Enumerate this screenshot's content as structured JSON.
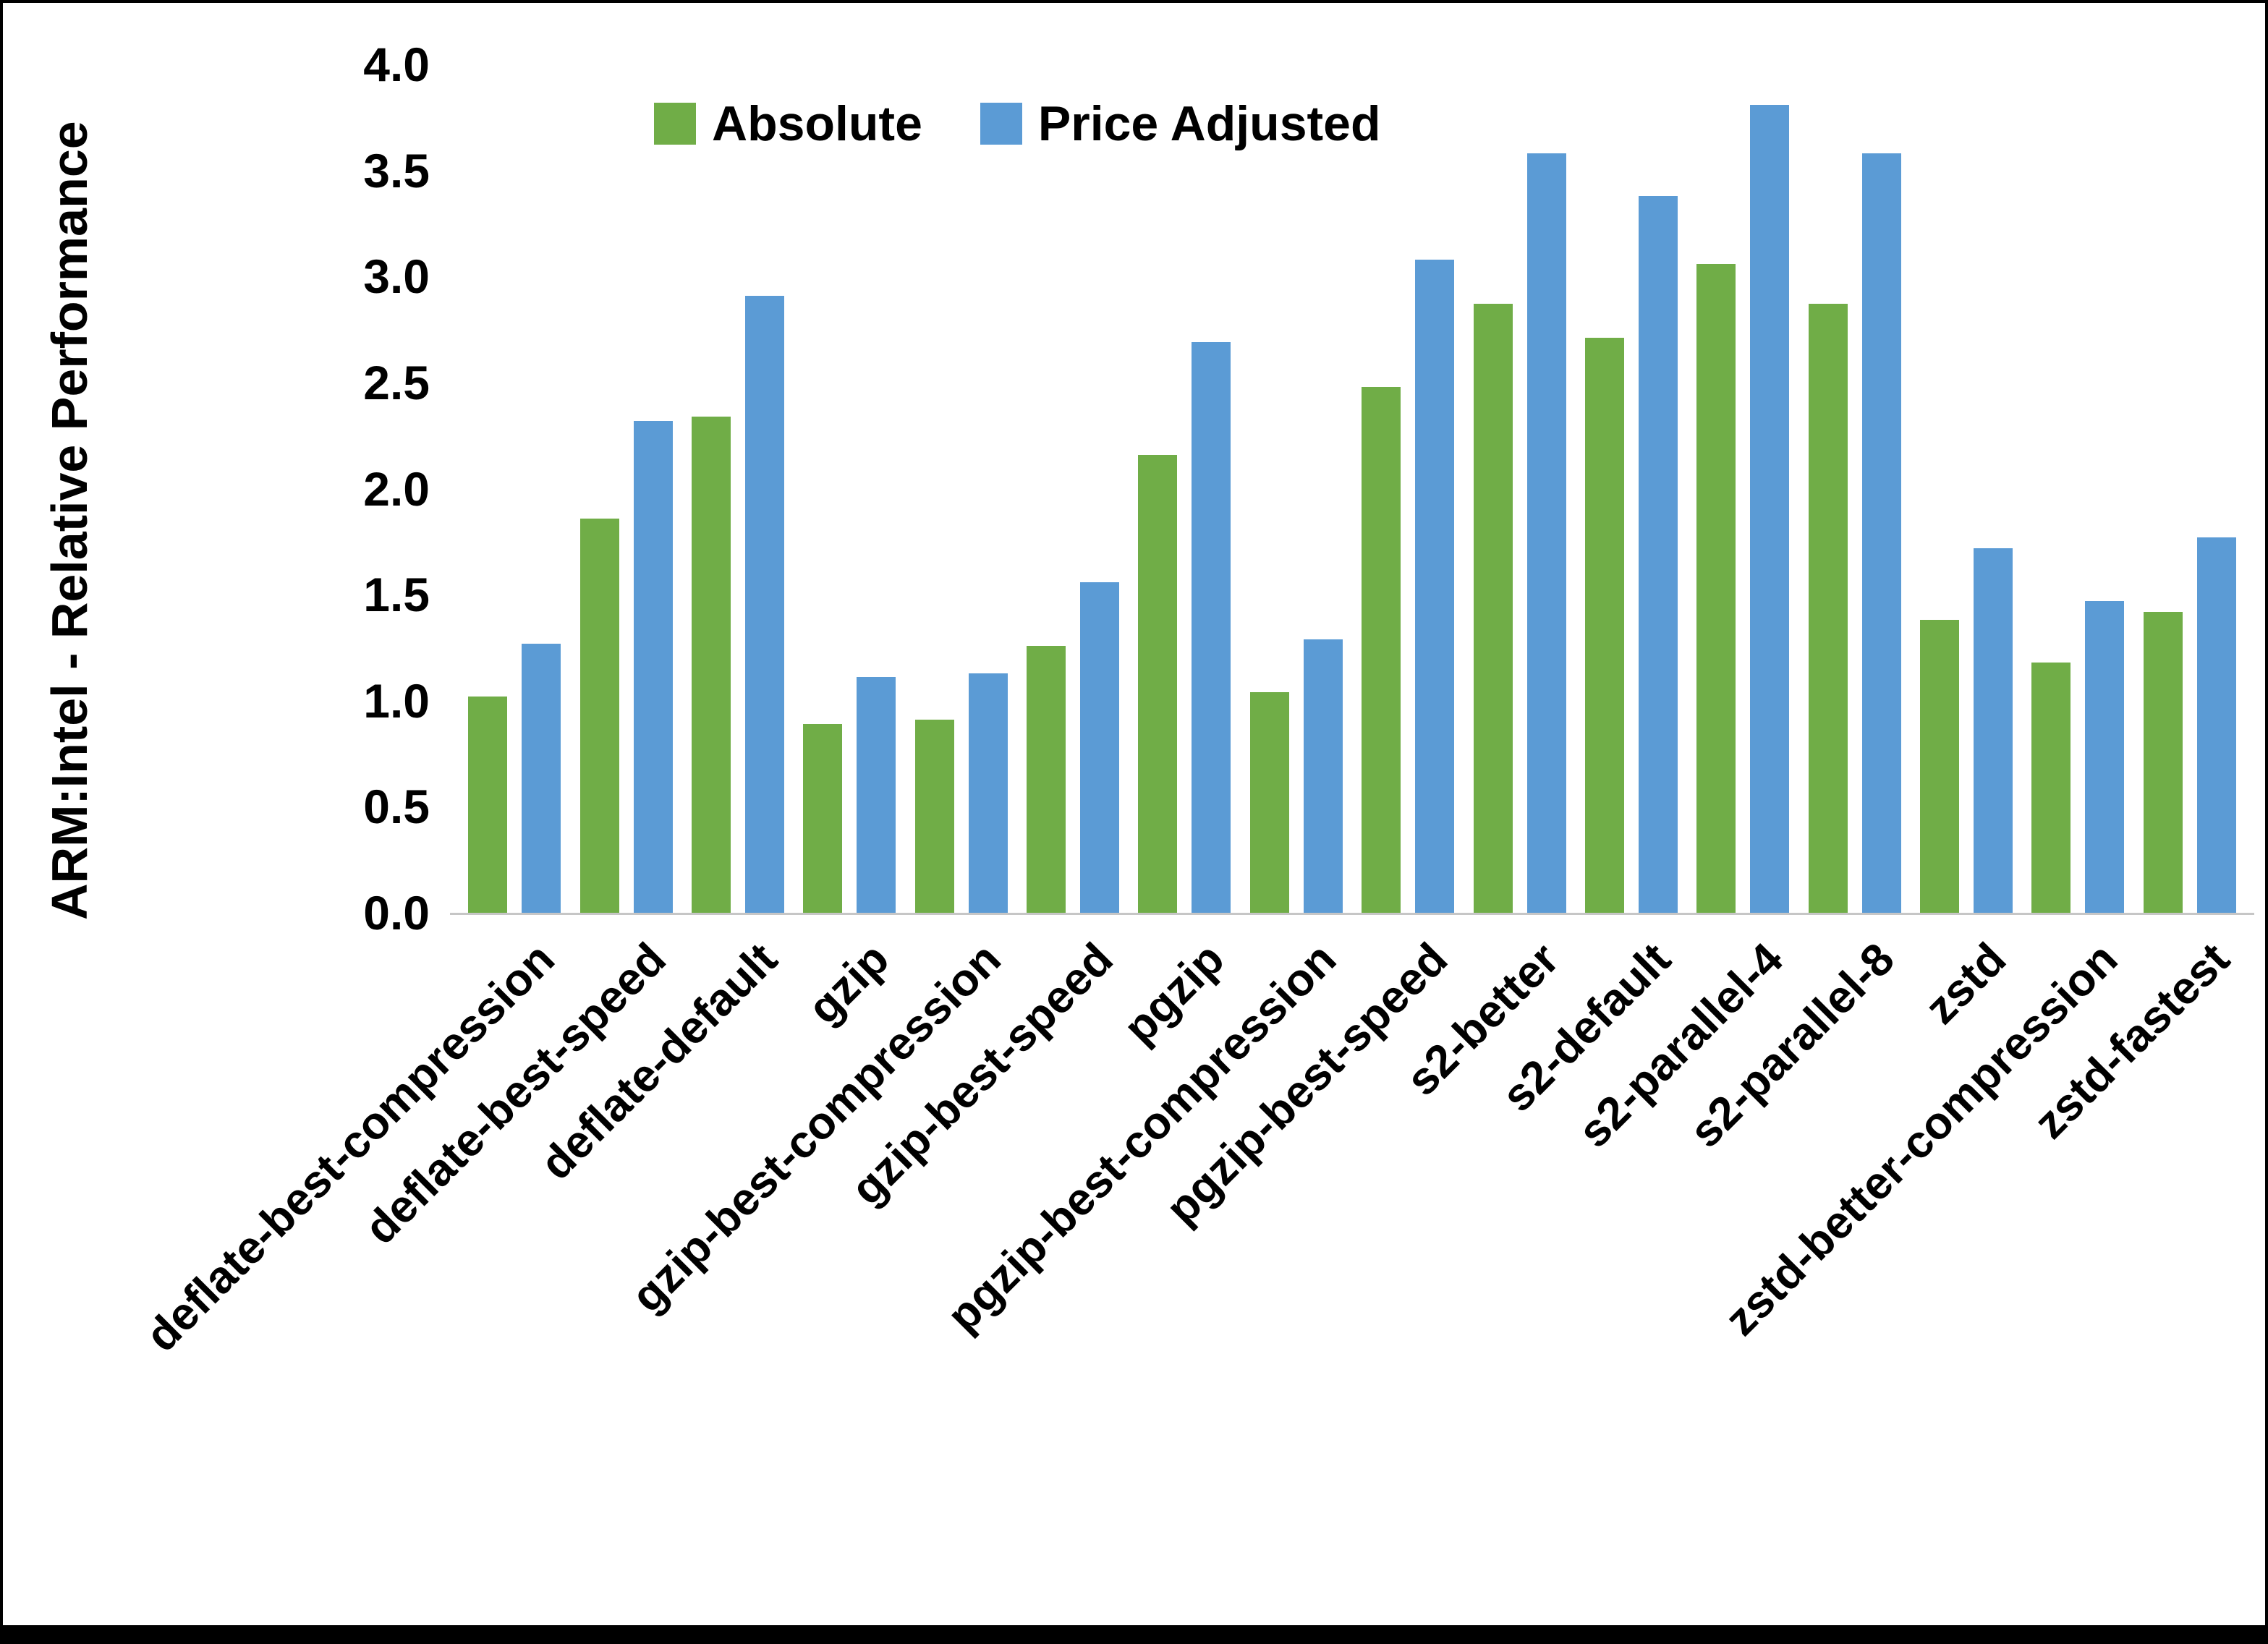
{
  "chart_data": {
    "type": "bar",
    "title": "",
    "xlabel": "",
    "ylabel": "ARM:Intel - Relative Performance",
    "ylim": [
      0,
      4.0
    ],
    "ytick_step": 0.5,
    "yticks": [
      "0.0",
      "0.5",
      "1.0",
      "1.5",
      "2.0",
      "2.5",
      "3.0",
      "3.5",
      "4.0"
    ],
    "grid": false,
    "legend_position": "top-center",
    "categories": [
      "deflate-best-compression",
      "deflate-best-speed",
      "deflate-default",
      "gzip",
      "gzip-best-compression",
      "gzip-best-speed",
      "pgzip",
      "pgzip-best-compression",
      "pgzip-best-speed",
      "s2-better",
      "s2-default",
      "s2-parallel-4",
      "s2-parallel-8",
      "zstd",
      "zstd-better-compression",
      "zstd-fastest"
    ],
    "series": [
      {
        "name": "Absolute",
        "color": "#70AD47",
        "values": [
          1.02,
          1.86,
          2.34,
          0.89,
          0.91,
          1.26,
          2.16,
          1.04,
          2.48,
          2.87,
          2.71,
          3.06,
          2.87,
          1.38,
          1.18,
          1.42
        ]
      },
      {
        "name": "Price Adjusted",
        "color": "#5B9BD5",
        "values": [
          1.27,
          2.32,
          2.91,
          1.11,
          1.13,
          1.56,
          2.69,
          1.29,
          3.08,
          3.58,
          3.38,
          3.81,
          3.58,
          1.72,
          1.47,
          1.77
        ]
      }
    ]
  },
  "colors": {
    "axis_line": "#C6C6C6",
    "text": "#000000",
    "frame": "#000000"
  }
}
